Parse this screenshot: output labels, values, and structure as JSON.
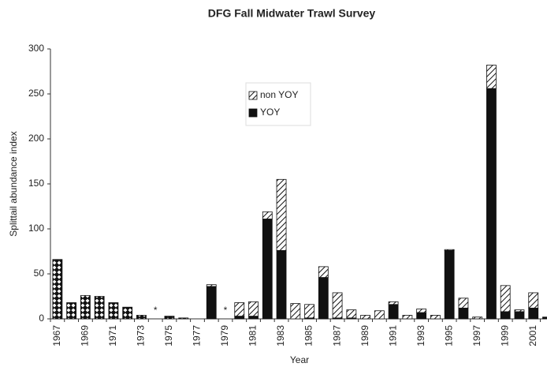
{
  "chart_data": {
    "type": "bar",
    "stacked": true,
    "title": "DFG Fall Midwater Trawl Survey",
    "x_label": "Year",
    "y_label": "Splittail abundance index",
    "categories": [
      "1967",
      null,
      "1969",
      null,
      "1971",
      null,
      "1973",
      null,
      "1975",
      null,
      "1977",
      null,
      "1979",
      null,
      "1981",
      null,
      "1983",
      null,
      "1985",
      null,
      "1987",
      null,
      "1989",
      null,
      "1991",
      null,
      "1993",
      null,
      "1995",
      null,
      "1997",
      null,
      "1999",
      null,
      "2001",
      null
    ],
    "series": [
      {
        "pattern": "diamond",
        "color": "#111111",
        "values": [
          66,
          18,
          26,
          25,
          18,
          13,
          4,
          null,
          3,
          1,
          0,
          null,
          null,
          null,
          null,
          null,
          null,
          null,
          null,
          null,
          null,
          null,
          null,
          null,
          null,
          null,
          null,
          null,
          null,
          null,
          null,
          null,
          null,
          null,
          null,
          null
        ]
      },
      {
        "name": "YOY",
        "pattern": "solid",
        "color": "#111111",
        "values": [
          null,
          null,
          null,
          null,
          null,
          null,
          null,
          null,
          null,
          null,
          null,
          36,
          null,
          3,
          3,
          111,
          76,
          0,
          1,
          46,
          1,
          1,
          0,
          0,
          16,
          0,
          7,
          0,
          76,
          12,
          0,
          256,
          8,
          8,
          12,
          2
        ]
      },
      {
        "name": "non YOY",
        "pattern": "hatch",
        "color": "#111111",
        "values": [
          null,
          null,
          null,
          null,
          null,
          null,
          null,
          null,
          null,
          null,
          null,
          2,
          null,
          15,
          16,
          8,
          79,
          17,
          15,
          12,
          28,
          9,
          4,
          9,
          3,
          4,
          4,
          4,
          1,
          11,
          2,
          26,
          29,
          2,
          17,
          0
        ]
      }
    ],
    "annotations": [
      {
        "text": "*",
        "index": 7
      },
      {
        "text": "*",
        "index": 12
      }
    ],
    "ylim": [
      0,
      300
    ],
    "yticks": [
      0,
      50,
      100,
      150,
      200,
      250,
      300
    ],
    "legend": "upper-center"
  }
}
